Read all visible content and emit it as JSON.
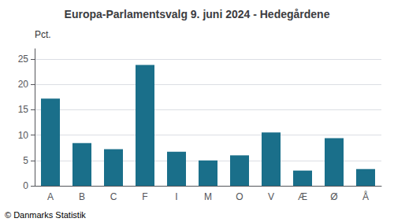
{
  "chart_data": {
    "type": "bar",
    "title": "Europa-Parlamentsvalg 9. juni 2024 - Hedegårdene",
    "categories": [
      "A",
      "B",
      "C",
      "F",
      "I",
      "M",
      "O",
      "V",
      "Æ",
      "Ø",
      "Å"
    ],
    "values": [
      17.2,
      8.4,
      7.2,
      23.8,
      6.7,
      5.0,
      6.0,
      10.5,
      3.0,
      9.4,
      3.3
    ],
    "color": "#1a6f8a",
    "ylabel": "Pct.",
    "ylim": [
      0,
      27
    ],
    "yticks": [
      0,
      5,
      10,
      15,
      20,
      25
    ],
    "grid": true,
    "annotations": [
      "© Danmarks Statistik"
    ]
  }
}
